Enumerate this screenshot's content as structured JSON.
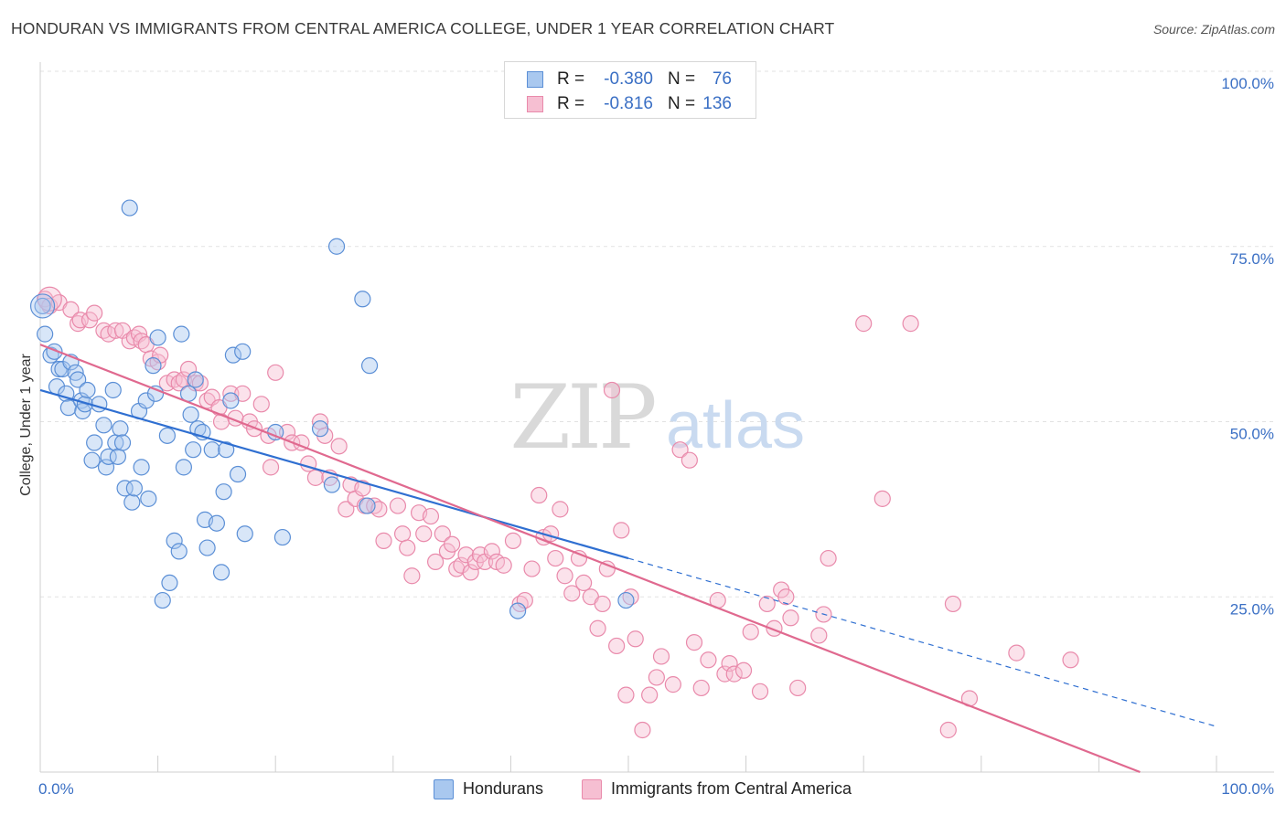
{
  "title": "HONDURAN VS IMMIGRANTS FROM CENTRAL AMERICA COLLEGE, UNDER 1 YEAR CORRELATION CHART",
  "source": "Source: ZipAtlas.com",
  "watermark": {
    "zip": "ZIP",
    "atlas": "atlas"
  },
  "legend": {
    "rows": [
      {
        "r_label": "R =",
        "r_value": "-0.380",
        "n_label": "N =",
        "n_value": "76"
      },
      {
        "r_label": "R =",
        "r_value": "-0.816",
        "n_label": "N =",
        "n_value": "136"
      }
    ]
  },
  "bottom_legend": {
    "series1": "Hondurans",
    "series2": "Immigrants from Central America"
  },
  "colors": {
    "blue_fill": "#a9c8ef",
    "blue_stroke": "#5b8fd6",
    "blue_line": "#2f6fd1",
    "pink_fill": "#f6bfd2",
    "pink_stroke": "#e98aab",
    "pink_line": "#e0698f",
    "tick_text": "#3a6fc4",
    "grid": "#e2e2e2"
  },
  "chart_data": {
    "type": "scatter",
    "title": "HONDURAN VS IMMIGRANTS FROM CENTRAL AMERICA COLLEGE, UNDER 1 YEAR CORRELATION CHART",
    "xlabel": "",
    "ylabel": "College, Under 1 year",
    "xlim": [
      0,
      100
    ],
    "ylim": [
      0,
      100
    ],
    "x_tick_labels": [
      "0.0%",
      "100.0%"
    ],
    "y_tick_labels": [
      "25.0%",
      "50.0%",
      "75.0%",
      "100.0%"
    ],
    "y_ticks": [
      25,
      50,
      75,
      100
    ],
    "grid": true,
    "legend_placement": "top-center",
    "series": [
      {
        "name": "Hondurans",
        "r": -0.38,
        "n": 76,
        "trend": {
          "x0": 0,
          "y0": 54.5,
          "x1": 100,
          "y1": 6.5,
          "solid_until": 50
        },
        "points": [
          [
            0.2,
            66.5
          ],
          [
            0.4,
            62.5
          ],
          [
            0.9,
            59.5
          ],
          [
            1.2,
            60
          ],
          [
            1.4,
            55
          ],
          [
            1.6,
            57.5
          ],
          [
            1.9,
            57.5
          ],
          [
            2.2,
            54
          ],
          [
            2.4,
            52
          ],
          [
            2.6,
            58.5
          ],
          [
            3.0,
            57
          ],
          [
            3.2,
            56
          ],
          [
            3.5,
            53
          ],
          [
            3.6,
            51.5
          ],
          [
            3.8,
            52.5
          ],
          [
            4.0,
            54.5
          ],
          [
            4.4,
            44.5
          ],
          [
            4.6,
            47
          ],
          [
            5.0,
            52.5
          ],
          [
            5.4,
            49.5
          ],
          [
            5.6,
            43.5
          ],
          [
            5.8,
            45
          ],
          [
            6.2,
            54.5
          ],
          [
            6.4,
            47
          ],
          [
            6.6,
            45
          ],
          [
            6.8,
            49
          ],
          [
            7.0,
            47
          ],
          [
            7.2,
            40.5
          ],
          [
            7.6,
            80.5
          ],
          [
            7.8,
            38.5
          ],
          [
            8.0,
            40.5
          ],
          [
            8.4,
            51.5
          ],
          [
            8.6,
            43.5
          ],
          [
            9.0,
            53
          ],
          [
            9.2,
            39
          ],
          [
            9.6,
            58
          ],
          [
            9.8,
            54
          ],
          [
            10.0,
            62
          ],
          [
            10.4,
            24.5
          ],
          [
            10.8,
            48
          ],
          [
            11.0,
            27
          ],
          [
            11.4,
            33
          ],
          [
            11.8,
            31.5
          ],
          [
            12.0,
            62.5
          ],
          [
            12.2,
            43.5
          ],
          [
            12.6,
            54
          ],
          [
            12.8,
            51
          ],
          [
            13.0,
            46
          ],
          [
            13.2,
            56
          ],
          [
            13.4,
            49
          ],
          [
            13.8,
            48.5
          ],
          [
            14.0,
            36
          ],
          [
            14.2,
            32
          ],
          [
            14.6,
            46
          ],
          [
            15.0,
            35.5
          ],
          [
            15.4,
            28.5
          ],
          [
            15.6,
            40
          ],
          [
            15.8,
            46
          ],
          [
            16.2,
            53
          ],
          [
            16.4,
            59.5
          ],
          [
            16.8,
            42.5
          ],
          [
            17.2,
            60
          ],
          [
            17.4,
            34
          ],
          [
            20.0,
            48.5
          ],
          [
            20.6,
            33.5
          ],
          [
            23.8,
            49
          ],
          [
            24.8,
            41
          ],
          [
            25.2,
            75
          ],
          [
            27.4,
            67.5
          ],
          [
            27.8,
            38
          ],
          [
            28.0,
            58
          ],
          [
            40.6,
            23
          ],
          [
            49.8,
            24.5
          ]
        ]
      },
      {
        "name": "Immigrants from Central America",
        "r": -0.816,
        "n": 136,
        "trend": {
          "x0": 0,
          "y0": 61,
          "x1": 93.5,
          "y1": 0
        },
        "points": [
          [
            0.4,
            67.5
          ],
          [
            0.8,
            66.5
          ],
          [
            1.6,
            67
          ],
          [
            2.6,
            66
          ],
          [
            3.2,
            64
          ],
          [
            3.4,
            64.5
          ],
          [
            4.2,
            64.5
          ],
          [
            4.6,
            65.5
          ],
          [
            5.4,
            63
          ],
          [
            5.8,
            62.5
          ],
          [
            6.4,
            63
          ],
          [
            7.0,
            63
          ],
          [
            7.6,
            61.5
          ],
          [
            8.0,
            62
          ],
          [
            8.4,
            62.5
          ],
          [
            8.6,
            61.5
          ],
          [
            9.0,
            61
          ],
          [
            9.4,
            59
          ],
          [
            10.0,
            58.5
          ],
          [
            10.2,
            59.5
          ],
          [
            10.8,
            55.5
          ],
          [
            11.4,
            56
          ],
          [
            11.8,
            55.5
          ],
          [
            12.2,
            56
          ],
          [
            12.6,
            57.5
          ],
          [
            13.2,
            55.5
          ],
          [
            13.6,
            55.5
          ],
          [
            14.2,
            53
          ],
          [
            14.6,
            53.5
          ],
          [
            15.2,
            52
          ],
          [
            15.4,
            50
          ],
          [
            16.2,
            54
          ],
          [
            16.6,
            50.5
          ],
          [
            17.2,
            54
          ],
          [
            17.8,
            50
          ],
          [
            18.2,
            49
          ],
          [
            18.8,
            52.5
          ],
          [
            19.4,
            48
          ],
          [
            19.6,
            43.5
          ],
          [
            20.0,
            57
          ],
          [
            21.0,
            48.5
          ],
          [
            21.4,
            47
          ],
          [
            22.2,
            47
          ],
          [
            22.8,
            44
          ],
          [
            23.4,
            42
          ],
          [
            23.8,
            50
          ],
          [
            24.2,
            48
          ],
          [
            24.6,
            42
          ],
          [
            25.4,
            46.5
          ],
          [
            26.0,
            37.5
          ],
          [
            26.4,
            41
          ],
          [
            26.8,
            39
          ],
          [
            27.4,
            40.5
          ],
          [
            27.6,
            38
          ],
          [
            28.4,
            38
          ],
          [
            28.8,
            37.5
          ],
          [
            29.2,
            33
          ],
          [
            30.4,
            38
          ],
          [
            30.8,
            34
          ],
          [
            31.2,
            32
          ],
          [
            31.6,
            28
          ],
          [
            32.2,
            37
          ],
          [
            32.6,
            34
          ],
          [
            33.2,
            36.5
          ],
          [
            33.6,
            30
          ],
          [
            34.2,
            34
          ],
          [
            34.6,
            31.5
          ],
          [
            35.0,
            32.5
          ],
          [
            35.4,
            29
          ],
          [
            35.8,
            29.5
          ],
          [
            36.2,
            31
          ],
          [
            36.6,
            28.5
          ],
          [
            37.0,
            30
          ],
          [
            37.4,
            31
          ],
          [
            37.8,
            30
          ],
          [
            38.4,
            31.5
          ],
          [
            38.8,
            30
          ],
          [
            39.4,
            29.5
          ],
          [
            40.2,
            33
          ],
          [
            40.8,
            24
          ],
          [
            41.2,
            24.5
          ],
          [
            41.8,
            29
          ],
          [
            42.4,
            39.5
          ],
          [
            42.8,
            33.5
          ],
          [
            43.4,
            34
          ],
          [
            43.8,
            30.5
          ],
          [
            44.2,
            37.5
          ],
          [
            44.6,
            28
          ],
          [
            45.2,
            25.5
          ],
          [
            45.8,
            30.5
          ],
          [
            46.2,
            27
          ],
          [
            46.8,
            25
          ],
          [
            47.4,
            20.5
          ],
          [
            47.8,
            24
          ],
          [
            48.2,
            29
          ],
          [
            48.6,
            54.5
          ],
          [
            49.0,
            18
          ],
          [
            49.4,
            34.5
          ],
          [
            49.8,
            11
          ],
          [
            50.2,
            25
          ],
          [
            50.6,
            19
          ],
          [
            51.2,
            6
          ],
          [
            51.8,
            11
          ],
          [
            52.4,
            13.5
          ],
          [
            52.8,
            16.5
          ],
          [
            53.8,
            12.5
          ],
          [
            54.4,
            46
          ],
          [
            55.2,
            44.5
          ],
          [
            55.6,
            18.5
          ],
          [
            56.2,
            12
          ],
          [
            56.8,
            16
          ],
          [
            57.6,
            24.5
          ],
          [
            58.2,
            14
          ],
          [
            58.6,
            15.5
          ],
          [
            59.0,
            14
          ],
          [
            59.8,
            14.5
          ],
          [
            60.4,
            20
          ],
          [
            61.2,
            11.5
          ],
          [
            61.8,
            24
          ],
          [
            62.4,
            20.5
          ],
          [
            63.0,
            26
          ],
          [
            63.4,
            25
          ],
          [
            63.8,
            22
          ],
          [
            64.4,
            12
          ],
          [
            66.2,
            19.5
          ],
          [
            66.6,
            22.5
          ],
          [
            67.0,
            30.5
          ],
          [
            70.0,
            64
          ],
          [
            71.6,
            39
          ],
          [
            74.0,
            64
          ],
          [
            77.2,
            6
          ],
          [
            77.6,
            24
          ],
          [
            79.0,
            10.5
          ],
          [
            83.0,
            17
          ],
          [
            87.6,
            16
          ]
        ]
      }
    ]
  }
}
